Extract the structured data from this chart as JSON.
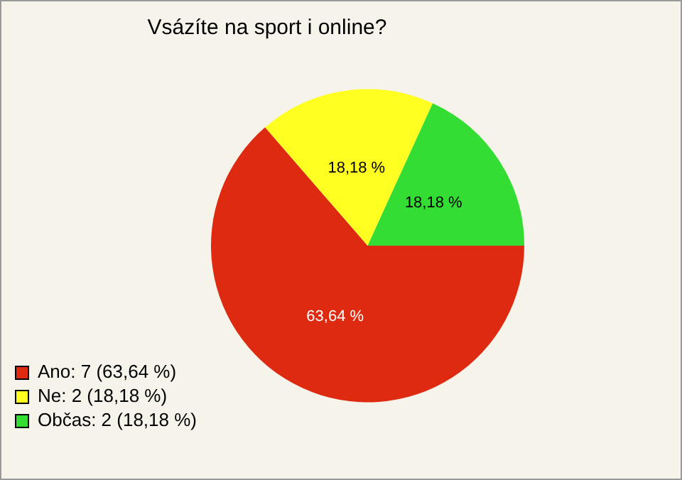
{
  "chart_data": {
    "type": "pie",
    "title": "Vsázíte na sport i online?",
    "categories": [
      "Ano: 7 (63,64 %)",
      "Ne: 2 (18,18 %)",
      "Občas: 2 (18,18 %)"
    ],
    "values": [
      63.64,
      18.18,
      18.18
    ],
    "value_labels": [
      "63,64 %",
      "18,18 %",
      "18,18 %"
    ],
    "colors": [
      "#dd2a10",
      "#ffff22",
      "#33dd33"
    ],
    "legend": "bottom left"
  }
}
